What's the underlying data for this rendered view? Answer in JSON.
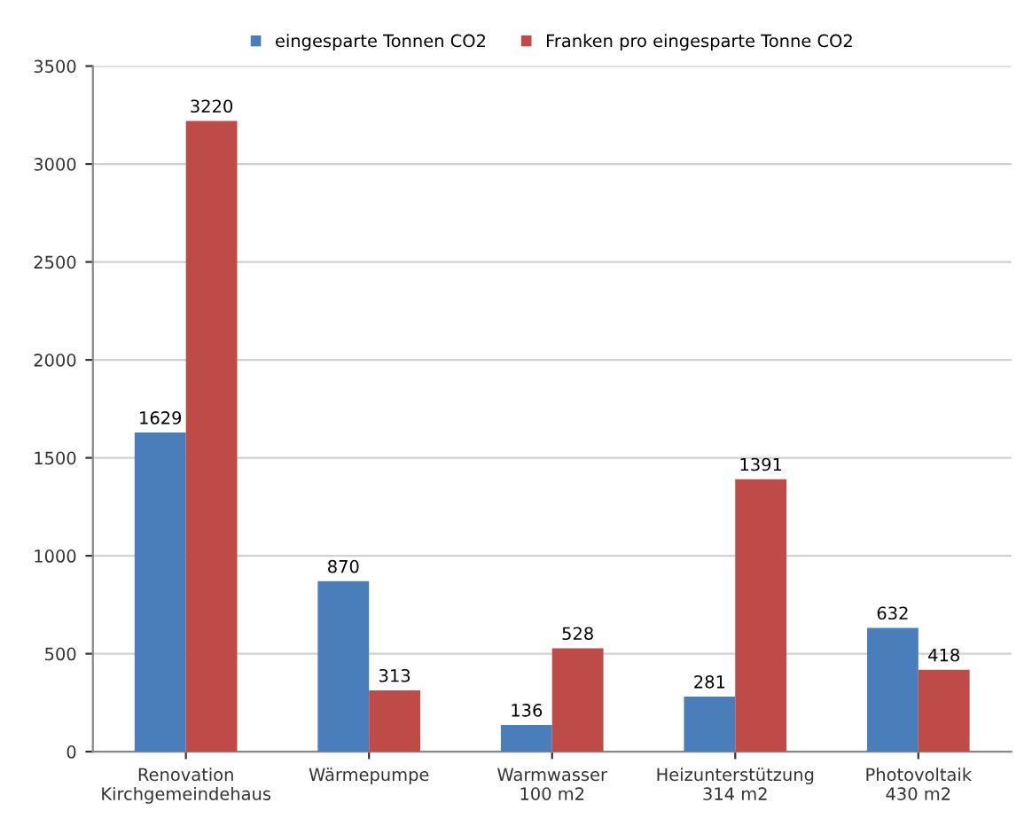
{
  "chart_data": {
    "type": "bar",
    "categories": [
      "Renovation\nKirchgemeindehaus",
      "Wärmepumpe",
      "Warmwasser\n100 m2",
      "Heizunterstützung\n314 m2",
      "Photovoltaik\n430 m2"
    ],
    "series": [
      {
        "name": "eingesparte Tonnen CO2",
        "color": "#4a7ebb",
        "values": [
          1629,
          870,
          136,
          281,
          632
        ]
      },
      {
        "name": "Franken pro eingesparte Tonne CO2",
        "color": "#be4b48",
        "values": [
          3220,
          313,
          528,
          1391,
          418
        ]
      }
    ],
    "ylim": [
      0,
      3500
    ],
    "yticks": [
      0,
      500,
      1000,
      1500,
      2000,
      2500,
      3000,
      3500
    ],
    "grid": "y",
    "legend": "top",
    "data_labels": true
  }
}
